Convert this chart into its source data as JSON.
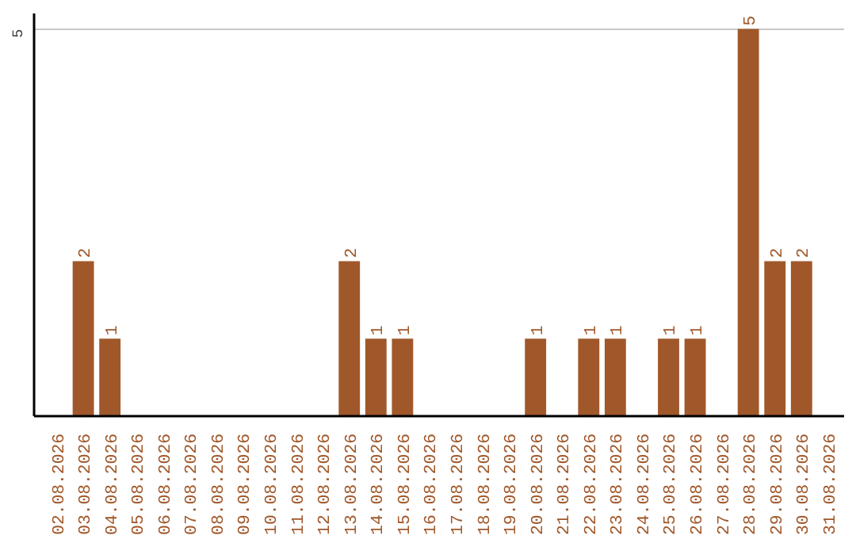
{
  "chart_data": {
    "type": "bar",
    "categories": [
      "02.08.2026",
      "03.08.2026",
      "04.08.2026",
      "05.08.2026",
      "06.08.2026",
      "07.08.2026",
      "08.08.2026",
      "09.08.2026",
      "10.08.2026",
      "11.08.2026",
      "12.08.2026",
      "13.08.2026",
      "14.08.2026",
      "15.08.2026",
      "16.08.2026",
      "17.08.2026",
      "18.08.2026",
      "19.08.2026",
      "20.08.2026",
      "21.08.2026",
      "22.08.2026",
      "23.08.2026",
      "24.08.2026",
      "25.08.2026",
      "26.08.2026",
      "27.08.2026",
      "28.08.2026",
      "29.08.2026",
      "30.08.2026",
      "31.08.2026"
    ],
    "values": [
      0,
      2,
      1,
      0,
      0,
      0,
      0,
      0,
      0,
      0,
      0,
      2,
      1,
      1,
      0,
      0,
      0,
      0,
      1,
      0,
      1,
      1,
      0,
      1,
      1,
      0,
      5,
      2,
      2,
      0
    ],
    "value_labels": [
      null,
      "2",
      "1",
      null,
      null,
      null,
      null,
      null,
      null,
      null,
      null,
      "2",
      "1",
      "1",
      null,
      null,
      null,
      null,
      "1",
      null,
      "1",
      "1",
      null,
      "1",
      "1",
      null,
      "5",
      "2",
      "2",
      null
    ],
    "color": "#a0582a",
    "ylim": [
      0,
      5.2
    ],
    "yticks": [
      5
    ],
    "grid": "y"
  }
}
